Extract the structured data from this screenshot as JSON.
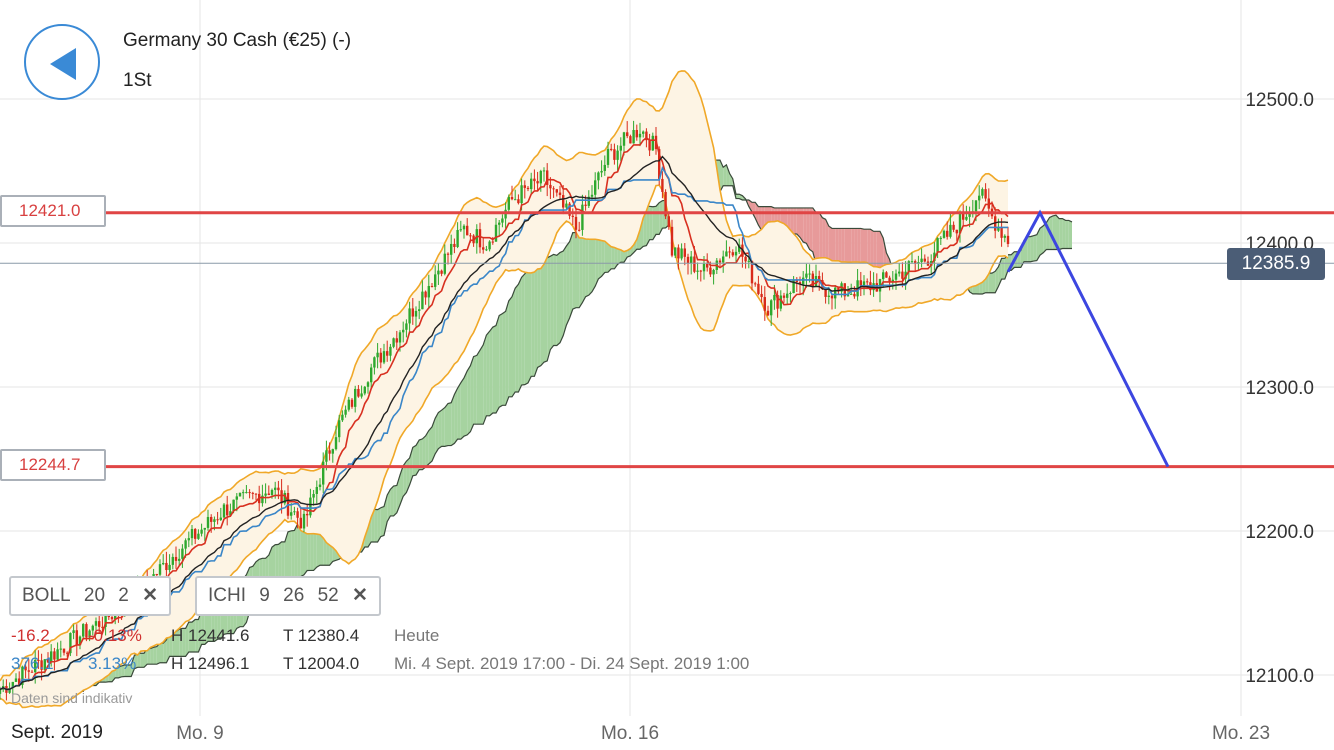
{
  "header": {
    "title": "Germany 30 Cash (€25) (-)",
    "timeframe": "1St"
  },
  "current_price": "12385.9",
  "horizontal_lines": [
    {
      "label": "12421.0",
      "value": 12421.0,
      "color": "#e04545"
    },
    {
      "label": "12244.7",
      "value": 12244.7,
      "color": "#e04545"
    }
  ],
  "indicators": {
    "boll": {
      "name": "BOLL",
      "p1": "20",
      "p2": "2"
    },
    "ichi": {
      "name": "ICHI",
      "p1": "9",
      "p2": "26",
      "p3": "52"
    }
  },
  "stats": {
    "today": {
      "change": "-16.2",
      "change_pct": "-0.13%",
      "high": "H 12441.6",
      "low": "T 12380.4",
      "period": "Heute"
    },
    "range": {
      "change": "376.1",
      "change_pct": "3.13%",
      "high": "H 12496.1",
      "low": "T 12004.0",
      "period": "Mi. 4 Sept. 2019 17:00 - Di. 24 Sept. 2019 1:00"
    }
  },
  "disclaimer": "Daten sind indikativ",
  "month_label": "Sept. 2019",
  "icons": {
    "back": "back-arrow-icon",
    "close": "close-icon"
  },
  "colors": {
    "up": "#2ea82e",
    "down": "#d82a1a",
    "cloud_bull": "#a6d3a0",
    "cloud_bear": "#e79a9a",
    "boll": "#f0a828",
    "tenkan": "#d83020",
    "kijun": "#3a86c8",
    "lagging": "#222222",
    "projection": "#3c46e0",
    "hline": "#e04545"
  },
  "chart_data": {
    "type": "candlestick",
    "instrument": "Germany 30 Cash (€25) (-)",
    "timeframe": "1St",
    "ylim": [
      12060,
      12560
    ],
    "y_ticks": [
      "12500.0",
      "12400.0",
      "12300.0",
      "12200.0",
      "12100.0"
    ],
    "x_ticks": [
      "Mo. 9",
      "Mo. 16",
      "Mo. 23"
    ],
    "current_price": 12385.9,
    "price_path": [
      [
        0,
        12090
      ],
      [
        20,
        12120
      ],
      [
        40,
        12150
      ],
      [
        55,
        12185
      ],
      [
        70,
        12215
      ],
      [
        85,
        12230
      ],
      [
        95,
        12205
      ],
      [
        105,
        12270
      ],
      [
        115,
        12310
      ],
      [
        125,
        12340
      ],
      [
        135,
        12375
      ],
      [
        145,
        12410
      ],
      [
        152,
        12400
      ],
      [
        160,
        12430
      ],
      [
        170,
        12445
      ],
      [
        180,
        12410
      ],
      [
        190,
        12460
      ],
      [
        200,
        12480
      ],
      [
        205,
        12465
      ],
      [
        210,
        12395
      ],
      [
        220,
        12380
      ],
      [
        230,
        12400
      ],
      [
        240,
        12355
      ],
      [
        250,
        12375
      ],
      [
        262,
        12365
      ],
      [
        275,
        12372
      ],
      [
        290,
        12390
      ],
      [
        300,
        12415
      ],
      [
        306,
        12435
      ],
      [
        310,
        12418
      ],
      [
        315,
        12402
      ]
    ],
    "projection": [
      {
        "t": 315,
        "price": 12380
      },
      {
        "t": 325,
        "price": 12421.0
      },
      {
        "t": 365,
        "price": 12244.7
      }
    ]
  }
}
